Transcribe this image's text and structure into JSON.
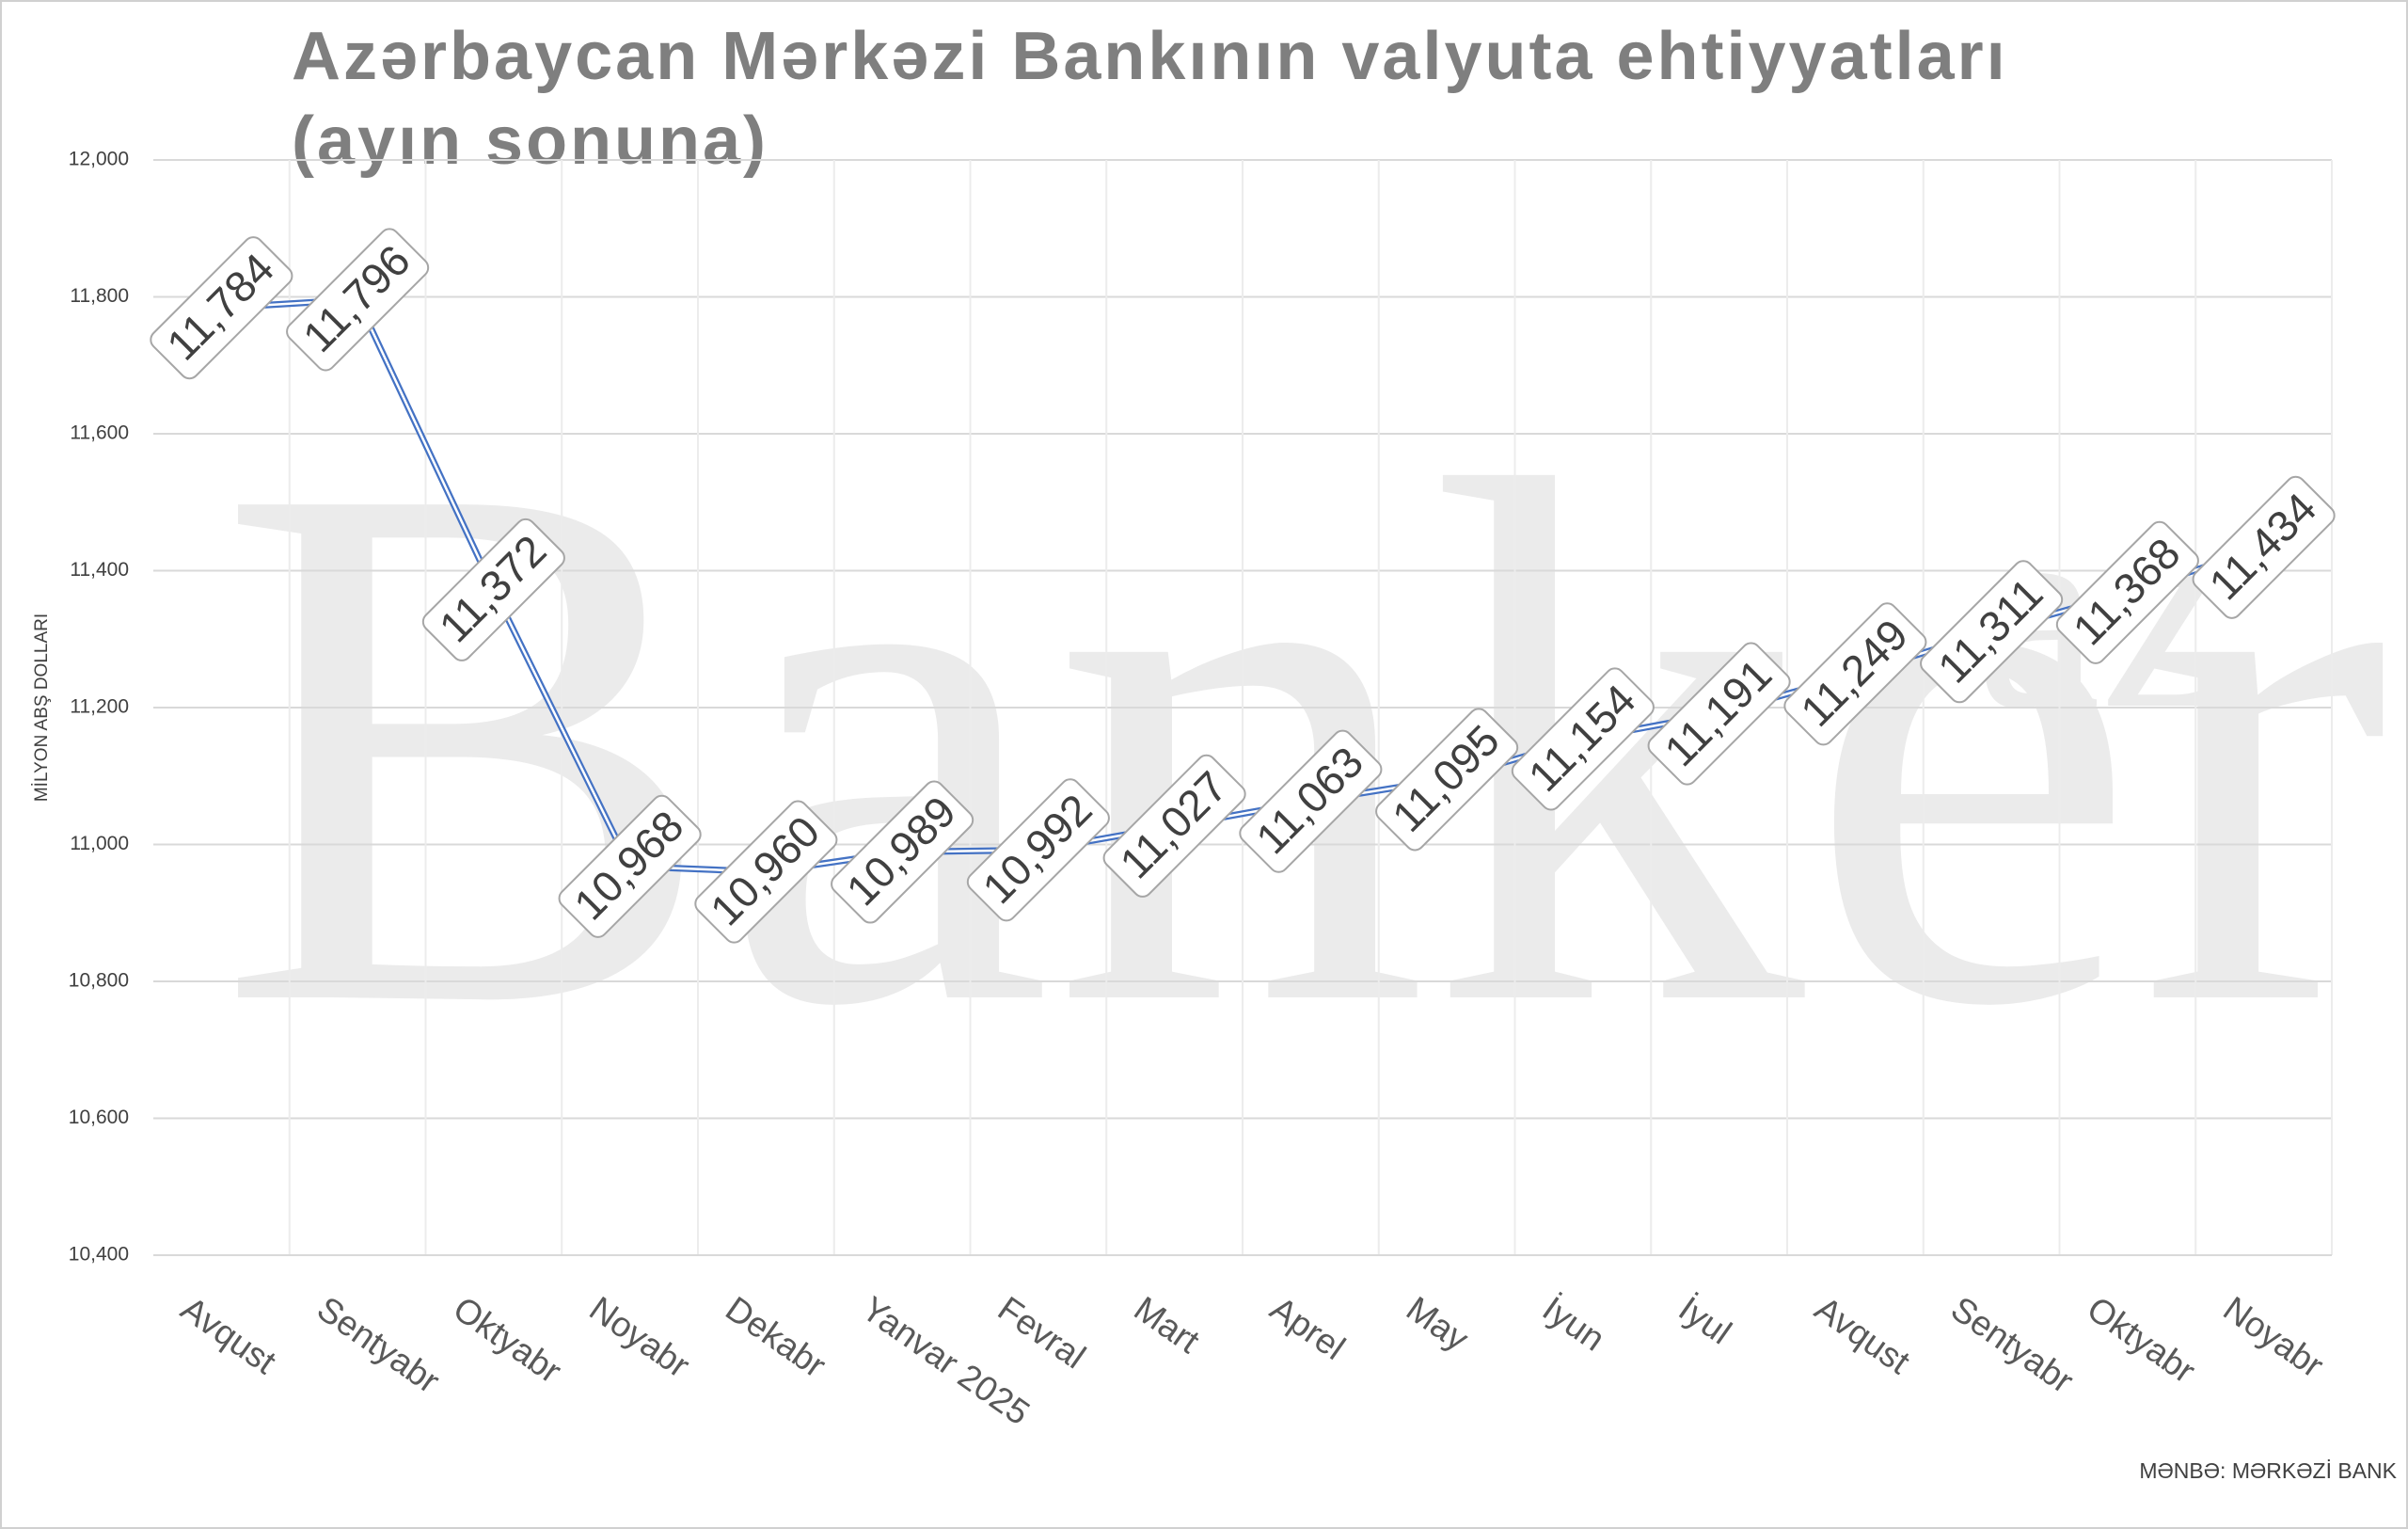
{
  "chart_data": {
    "type": "line",
    "title": [
      "Azərbaycan Mərkəzi Bankının valyuta ehtiyyatları",
      "(ayın sonuna)"
    ],
    "y_label": "MİLYON ABŞ DOLLARI",
    "source": "MƏNBƏ: MƏRKƏZİ BANK",
    "watermark": [
      "Banker",
      "az"
    ],
    "categories": [
      "Avqust",
      "Sentyabr",
      "Oktyabr",
      "Noyabr",
      "Dekabr",
      "Yanvar 2025",
      "Fevral",
      "Mart",
      "Aprel",
      "May",
      "İyun",
      "İyul",
      "Avqust",
      "Sentyabr",
      "Oktyabr",
      "Noyabr"
    ],
    "series": [
      {
        "name": "Valyuta ehtiyyatları",
        "color": "#4472c4",
        "values": [
          11784,
          11796,
          11372,
          10968,
          10960,
          10989,
          10992,
          11027,
          11063,
          11095,
          11154,
          11191,
          11249,
          11311,
          11368,
          11434
        ],
        "value_labels": [
          "11,784",
          "11,796",
          "11,372",
          "10,968",
          "10,960",
          "10,989",
          "10,992",
          "11,027",
          "11,063",
          "11,095",
          "11,154",
          "11,191",
          "11,249",
          "11,311",
          "11,368",
          "11,434"
        ]
      }
    ],
    "ylim": [
      10400,
      12000
    ],
    "yticks": [
      {
        "value": 10400,
        "label": "10,400"
      },
      {
        "value": 10600,
        "label": "10,600"
      },
      {
        "value": 10800,
        "label": "10,800"
      },
      {
        "value": 11000,
        "label": "11,000"
      },
      {
        "value": 11200,
        "label": "11,200"
      },
      {
        "value": 11400,
        "label": "11,400"
      },
      {
        "value": 11600,
        "label": "11,600"
      },
      {
        "value": 11800,
        "label": "11,800"
      },
      {
        "value": 12000,
        "label": "12,000"
      }
    ],
    "grid": true
  }
}
